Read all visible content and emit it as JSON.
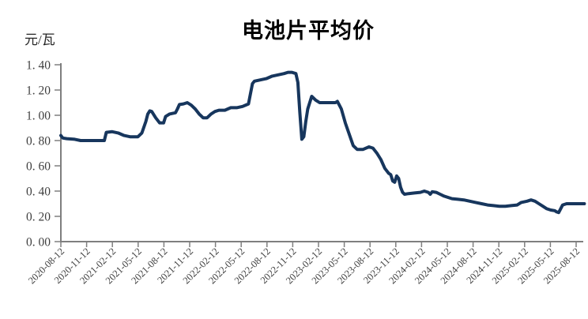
{
  "title": "电池片平均价",
  "unit_label": "元/瓦",
  "colors": {
    "line": "#17365D",
    "axis": "#7f7f7f",
    "tick_label": "#3f3f3f",
    "title": "#000000",
    "background": "#ffffff"
  },
  "chart_data": {
    "type": "line",
    "title": "电池片平均价",
    "ylabel": "元/瓦",
    "xlabel": "",
    "ylim": [
      0.0,
      1.4
    ],
    "ytick_step": 0.2,
    "grid": false,
    "legend_position": "none",
    "ytick_labels": [
      "1. 40",
      "1. 20",
      "1. 00",
      "0. 80",
      "0. 60",
      "0. 40",
      "0. 20",
      "0. 00"
    ],
    "xtick_labels": [
      "2020-08-12",
      "2020-11-12",
      "2021-02-12",
      "2021-05-12",
      "2021-08-12",
      "2021-11-12",
      "2022-02-12",
      "2022-05-12",
      "2022-08-12",
      "2022-11-12",
      "2023-02-12",
      "2023-05-12",
      "2023-08-12",
      "2023-11-12",
      "2024-02-12",
      "2024-05-12",
      "2024-08-12",
      "2024-11-12",
      "2025-02-12",
      "2025-05-12",
      "2025-08-12"
    ],
    "series": [
      {
        "name": "电池片平均价",
        "x": [
          "2020-08-12",
          "2020-08-19",
          "2020-09-02",
          "2020-09-30",
          "2020-10-21",
          "2020-11-18",
          "2020-12-16",
          "2021-01-13",
          "2021-01-20",
          "2021-02-10",
          "2021-03-03",
          "2021-03-24",
          "2021-04-14",
          "2021-05-12",
          "2021-05-26",
          "2021-06-09",
          "2021-06-16",
          "2021-06-23",
          "2021-06-30",
          "2021-07-14",
          "2021-07-28",
          "2021-08-11",
          "2021-08-18",
          "2021-09-01",
          "2021-09-22",
          "2021-09-29",
          "2021-10-06",
          "2021-10-20",
          "2021-11-03",
          "2021-11-17",
          "2021-12-01",
          "2021-12-15",
          "2021-12-29",
          "2022-01-12",
          "2022-01-26",
          "2022-02-09",
          "2022-02-23",
          "2022-03-16",
          "2022-04-06",
          "2022-04-27",
          "2022-05-18",
          "2022-06-08",
          "2022-06-15",
          "2022-06-22",
          "2022-06-29",
          "2022-07-20",
          "2022-08-10",
          "2022-08-31",
          "2022-09-21",
          "2022-10-12",
          "2022-10-26",
          "2022-11-09",
          "2022-11-23",
          "2022-11-30",
          "2022-12-07",
          "2022-12-14",
          "2022-12-21",
          "2022-12-28",
          "2023-01-04",
          "2023-01-18",
          "2023-02-01",
          "2023-02-15",
          "2023-03-15",
          "2023-04-12",
          "2023-04-19",
          "2023-04-26",
          "2023-05-03",
          "2023-05-17",
          "2023-05-31",
          "2023-06-14",
          "2023-06-28",
          "2023-07-19",
          "2023-08-09",
          "2023-08-23",
          "2023-08-30",
          "2023-09-06",
          "2023-09-20",
          "2023-10-04",
          "2023-10-18",
          "2023-10-25",
          "2023-11-01",
          "2023-11-08",
          "2023-11-15",
          "2023-11-22",
          "2023-11-29",
          "2023-12-06",
          "2023-12-13",
          "2023-12-27",
          "2024-01-17",
          "2024-02-07",
          "2024-02-21",
          "2024-03-06",
          "2024-03-13",
          "2024-03-20",
          "2024-04-03",
          "2024-04-17",
          "2024-05-01",
          "2024-05-15",
          "2024-05-29",
          "2024-06-19",
          "2024-07-10",
          "2024-07-31",
          "2024-08-21",
          "2024-09-11",
          "2024-10-02",
          "2024-10-23",
          "2024-11-13",
          "2024-12-04",
          "2024-12-25",
          "2025-01-15",
          "2025-01-29",
          "2025-02-19",
          "2025-03-05",
          "2025-03-19",
          "2025-04-02",
          "2025-04-16",
          "2025-04-30",
          "2025-05-14",
          "2025-05-28",
          "2025-06-04",
          "2025-06-11",
          "2025-06-18",
          "2025-06-25",
          "2025-07-09",
          "2025-07-30",
          "2025-08-12",
          "2025-09-10"
        ],
        "y": [
          0.84,
          0.82,
          0.815,
          0.81,
          0.8,
          0.8,
          0.8,
          0.8,
          0.865,
          0.87,
          0.86,
          0.84,
          0.83,
          0.83,
          0.86,
          0.95,
          1.01,
          1.035,
          1.03,
          0.98,
          0.94,
          0.94,
          0.99,
          1.01,
          1.02,
          1.05,
          1.085,
          1.09,
          1.1,
          1.08,
          1.05,
          1.01,
          0.98,
          0.98,
          1.01,
          1.03,
          1.04,
          1.04,
          1.06,
          1.06,
          1.07,
          1.09,
          1.17,
          1.25,
          1.27,
          1.28,
          1.29,
          1.31,
          1.32,
          1.33,
          1.34,
          1.34,
          1.33,
          1.26,
          1.02,
          0.81,
          0.83,
          0.95,
          1.05,
          1.15,
          1.12,
          1.1,
          1.1,
          1.1,
          1.11,
          1.08,
          1.05,
          0.94,
          0.85,
          0.76,
          0.73,
          0.73,
          0.75,
          0.74,
          0.72,
          0.7,
          0.65,
          0.58,
          0.54,
          0.53,
          0.48,
          0.47,
          0.52,
          0.5,
          0.43,
          0.39,
          0.375,
          0.38,
          0.385,
          0.39,
          0.4,
          0.39,
          0.375,
          0.395,
          0.39,
          0.375,
          0.36,
          0.35,
          0.34,
          0.335,
          0.33,
          0.32,
          0.31,
          0.3,
          0.29,
          0.285,
          0.28,
          0.28,
          0.285,
          0.29,
          0.31,
          0.32,
          0.33,
          0.32,
          0.3,
          0.28,
          0.26,
          0.25,
          0.245,
          0.235,
          0.23,
          0.26,
          0.29,
          0.3,
          0.3,
          0.3,
          0.3
        ]
      }
    ]
  }
}
